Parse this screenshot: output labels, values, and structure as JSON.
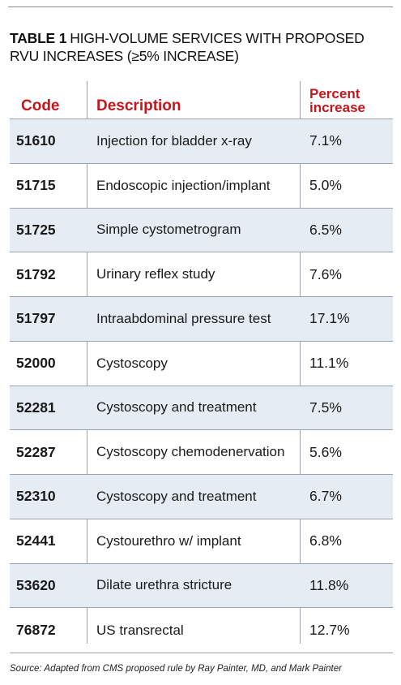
{
  "table": {
    "label": "TABLE 1",
    "title": "HIGH-VOLUME SERVICES WITH PROPOSED RVU INCREASES (≥5% INCREASE)",
    "columns": {
      "code": "Code",
      "description": "Description",
      "percent_line1": "Percent",
      "percent_line2": "increase"
    },
    "rows": [
      {
        "code": "51610",
        "description": "Injection for bladder x-ray",
        "percent": "7.1%"
      },
      {
        "code": "51715",
        "description": "Endoscopic injection/implant",
        "percent": "5.0%"
      },
      {
        "code": "51725",
        "description": "Simple cystometrogram",
        "percent": "6.5%"
      },
      {
        "code": "51792",
        "description": "Urinary reflex study",
        "percent": "7.6%"
      },
      {
        "code": "51797",
        "description": "Intraabdominal pressure test",
        "percent": "17.1%"
      },
      {
        "code": "52000",
        "description": "Cystoscopy",
        "percent": "11.1%"
      },
      {
        "code": "52281",
        "description": "Cystoscopy and treatment",
        "percent": "7.5%"
      },
      {
        "code": "52287",
        "description": "Cystoscopy chemodenervation",
        "percent": "5.6%"
      },
      {
        "code": "52310",
        "description": "Cystoscopy and treatment",
        "percent": "6.7%"
      },
      {
        "code": "52441",
        "description": "Cystourethro w/ implant",
        "percent": "6.8%"
      },
      {
        "code": "53620",
        "description": "Dilate urethra stricture",
        "percent": "11.8%"
      },
      {
        "code": "76872",
        "description": "US transrectal",
        "percent": "12.7%"
      }
    ],
    "source": "Source: Adapted from CMS proposed rule by Ray Painter, MD, and Mark Painter"
  },
  "colors": {
    "header_red": "#c4161c",
    "shaded_row": "#e6ecf4",
    "rule": "#9aa3ad"
  }
}
